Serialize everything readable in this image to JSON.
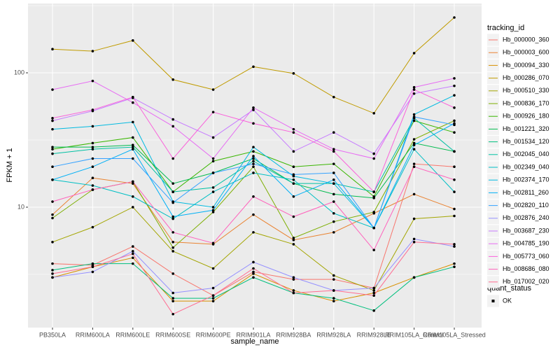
{
  "chart_data": {
    "type": "line",
    "x_label": "sample_name",
    "y_label": "FPKM + 1",
    "legend_title": "tracking_id",
    "categories": [
      "PB350LA",
      "RRIM600LA",
      "RRIM600LE",
      "RRIM600SE",
      "RRIM600PE",
      "RRIM901LA",
      "RRIM928BA",
      "RRIM928LA",
      "RRIM928LE",
      "RRIM105LA_Control",
      "RRIM105LA_Stressed"
    ],
    "log_scale": true,
    "grid": true,
    "legend_position": "right",
    "ylim": [
      1.27,
      328
    ],
    "yticks": [
      10,
      100
    ],
    "shape_legend": {
      "title": "quant_status",
      "labels": [
        "OK"
      ]
    },
    "series": [
      {
        "name": "Hb_000000_360",
        "color": "#F8766D",
        "values": [
          3.8,
          3.7,
          5.1,
          3.2,
          2.2,
          3.3,
          2.9,
          2.9,
          2.5,
          21,
          20
        ]
      },
      {
        "name": "Hb_000003_600",
        "color": "#EA8331",
        "values": [
          8.8,
          16.5,
          15,
          5.5,
          5.3,
          8.8,
          5.7,
          6.5,
          9,
          12.5,
          9.7
        ]
      },
      {
        "name": "Hb_000094_330",
        "color": "#D89000",
        "values": [
          3.0,
          3.6,
          4.2,
          2.0,
          2.0,
          3.2,
          2.4,
          2.0,
          2.3,
          3.0,
          3.8
        ]
      },
      {
        "name": "Hb_000286_070",
        "color": "#C09B00",
        "values": [
          150,
          145,
          174,
          89,
          75,
          111,
          99,
          66,
          50,
          140,
          258
        ]
      },
      {
        "name": "Hb_000510_330",
        "color": "#A3A500",
        "values": [
          5.5,
          7.1,
          10,
          4.7,
          3.5,
          6.5,
          5.3,
          3.1,
          2.4,
          8.2,
          8.6
        ]
      },
      {
        "name": "Hb_000836_170",
        "color": "#7CAE00",
        "values": [
          8.3,
          13.5,
          15.5,
          5.0,
          9.2,
          20,
          5.9,
          7.8,
          9.2,
          32,
          44
        ]
      },
      {
        "name": "Hb_000926_180",
        "color": "#39B600",
        "values": [
          27,
          30,
          33,
          13,
          22,
          26,
          20,
          21,
          12,
          44,
          36
        ]
      },
      {
        "name": "Hb_001221_320",
        "color": "#00BB4E",
        "values": [
          28,
          28,
          29,
          15,
          18,
          23,
          15,
          12.5,
          11.7,
          30,
          26
        ]
      },
      {
        "name": "Hb_001534_120",
        "color": "#00BF7D",
        "values": [
          3.4,
          3.8,
          3.8,
          2.1,
          2.1,
          3.0,
          2.3,
          2.1,
          1.7,
          3.0,
          3.6
        ]
      },
      {
        "name": "Hb_002045_040",
        "color": "#00C1A3",
        "values": [
          25,
          27,
          28,
          13,
          14,
          22,
          15,
          15,
          13,
          46,
          26
        ]
      },
      {
        "name": "Hb_002349_040",
        "color": "#00BFC4",
        "values": [
          16,
          14.5,
          12,
          8.2,
          13,
          18,
          16,
          9,
          7,
          27,
          13
        ]
      },
      {
        "name": "Hb_002374_170",
        "color": "#00BAE0",
        "values": [
          38,
          40,
          43,
          11,
          10,
          28,
          17,
          15,
          7,
          49,
          68
        ]
      },
      {
        "name": "Hb_002811_260",
        "color": "#00B0F6",
        "values": [
          16,
          20,
          27,
          8.5,
          9.5,
          24,
          12,
          16,
          7,
          29,
          42
        ]
      },
      {
        "name": "Hb_002820_110",
        "color": "#35A2FF",
        "values": [
          20,
          23,
          23,
          10.8,
          18,
          21,
          17.5,
          18,
          7,
          47,
          41
        ]
      },
      {
        "name": "Hb_002876_240",
        "color": "#9590FF",
        "values": [
          3.0,
          3.3,
          4.7,
          2.3,
          2.5,
          3.9,
          3.0,
          2.4,
          2.5,
          5.8,
          5.1
        ]
      },
      {
        "name": "Hb_003687_230",
        "color": "#C77CFF",
        "values": [
          44,
          52,
          65,
          45,
          33,
          53,
          26,
          36,
          25,
          70,
          80
        ]
      },
      {
        "name": "Hb_004785_190",
        "color": "#E76BF3",
        "values": [
          75,
          87,
          60,
          40,
          23,
          55,
          38,
          27,
          23,
          78,
          91
        ]
      },
      {
        "name": "Hb_005773_060",
        "color": "#FA62DB",
        "values": [
          46,
          53,
          66,
          23,
          51,
          42,
          36,
          26,
          13,
          75,
          55
        ]
      },
      {
        "name": "Hb_008686_080",
        "color": "#FF62BC",
        "values": [
          11,
          13.5,
          15.5,
          6.5,
          5.4,
          12,
          8.5,
          11,
          4.8,
          20,
          16
        ]
      },
      {
        "name": "Hb_017002_020",
        "color": "#FF6C91",
        "values": [
          3.2,
          3.6,
          4.5,
          1.6,
          2.2,
          3.5,
          2.3,
          2.4,
          2.2,
          5.5,
          5.3
        ]
      }
    ]
  }
}
